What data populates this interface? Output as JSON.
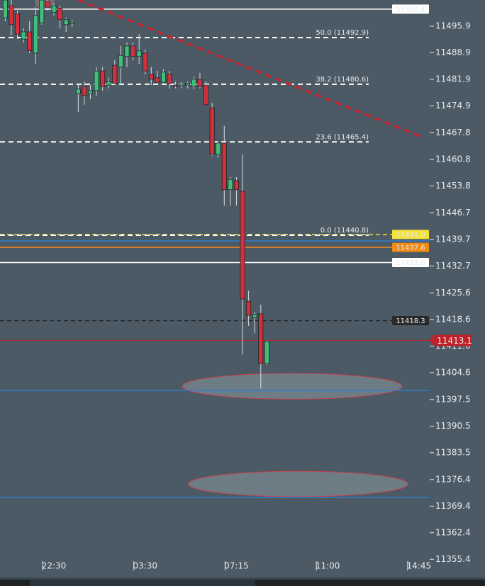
{
  "chart_data": {
    "type": "candlestick",
    "x": [
      -8,
      -7,
      -6,
      -5,
      -4,
      -3,
      -2,
      -1,
      0,
      1,
      2,
      3,
      4,
      5,
      6,
      7,
      8,
      9,
      10,
      11,
      12,
      13,
      14,
      15,
      16,
      17,
      18,
      19,
      20,
      21,
      22,
      23,
      24,
      25,
      26,
      27,
      28,
      29,
      30,
      31,
      32,
      33,
      34,
      35
    ],
    "open": [
      11498.1,
      11501.3,
      11499.1,
      11492.5,
      11494.4,
      11488.8,
      11496.8,
      11502.4,
      11499.5,
      11500.6,
      11496.3,
      11496.6,
      11478.2,
      11480.0,
      11478.0,
      11478.9,
      11484.1,
      11480.4,
      11485.6,
      11485.1,
      11487.9,
      11490.7,
      11487.9,
      11488.8,
      11483.2,
      11482.3,
      11481.1,
      11483.2,
      11480.4,
      11480.2,
      11480.4,
      11480.0,
      11481.9,
      11480.4,
      11474.4,
      11462.1,
      11465.1,
      11452.8,
      11455.2,
      11452.4,
      11423.4,
      11419.1,
      11420.1,
      11407.0
    ],
    "high": [
      11503.7,
      11502.8,
      11500.0,
      11495.3,
      11497.2,
      11500.9,
      11503.7,
      11503.7,
      11501.9,
      11501.3,
      11498.1,
      11497.6,
      11480.4,
      11481.3,
      11480.4,
      11485.1,
      11485.1,
      11482.3,
      11486.9,
      11490.7,
      11491.6,
      11491.6,
      11493.8,
      11489.7,
      11485.1,
      11484.1,
      11484.5,
      11484.1,
      11481.3,
      11481.1,
      11481.3,
      11482.6,
      11483.6,
      11481.3,
      11475.7,
      11465.5,
      11469.6,
      11456.1,
      11456.1,
      11462.1,
      11426.2,
      11420.6,
      11422.5,
      11413.1
    ],
    "low": [
      11497.2,
      11493.5,
      11492.5,
      11491.6,
      11488.8,
      11486.0,
      11496.3,
      11500.0,
      11498.7,
      11495.3,
      11494.4,
      11495.7,
      11473.3,
      11475.2,
      11476.7,
      11477.6,
      11478.9,
      11479.5,
      11480.4,
      11480.4,
      11485.1,
      11486.9,
      11486.0,
      11483.2,
      11480.4,
      11480.4,
      11480.4,
      11479.5,
      11479.5,
      11479.5,
      11479.5,
      11479.3,
      11479.5,
      11475.2,
      11461.7,
      11461.3,
      11448.6,
      11448.6,
      11448.6,
      11409.4,
      11416.9,
      11415.0,
      11400.4,
      11406.6
    ],
    "close": [
      11502.8,
      11496.3,
      11493.8,
      11494.4,
      11489.4,
      11498.7,
      11502.8,
      11500.9,
      11501.3,
      11497.6,
      11497.6,
      11497.0,
      11479.3,
      11477.6,
      11478.9,
      11484.1,
      11480.0,
      11481.3,
      11480.8,
      11488.2,
      11490.7,
      11487.9,
      11489.4,
      11484.1,
      11481.9,
      11481.1,
      11483.8,
      11480.8,
      11480.2,
      11480.6,
      11480.8,
      11481.9,
      11480.0,
      11475.2,
      11462.1,
      11465.1,
      11452.8,
      11455.5,
      11452.8,
      11424.0,
      11419.7,
      11419.9,
      11407.0,
      11412.8
    ],
    "up_color": "#3fbf78",
    "down_color": "#d3303b",
    "wick_color": "#1c2226",
    "xlim": [
      -8.86,
      61.65
    ],
    "xticks": [
      {
        "value": 0,
        "label": "22:30"
      },
      {
        "value": 15,
        "label": "03:30"
      },
      {
        "value": 30,
        "label": "07:15"
      },
      {
        "value": 45,
        "label": "11:00"
      },
      {
        "value": 60,
        "label": "14:45"
      }
    ],
    "ylim": [
      11350.6,
      11502.8
    ],
    "yticks": [
      11495.9,
      11488.9,
      11481.9,
      11474.9,
      11467.8,
      11460.8,
      11453.8,
      11446.7,
      11439.7,
      11432.7,
      11425.6,
      11418.6,
      11411.6,
      11404.6,
      11397.5,
      11390.5,
      11383.5,
      11376.4,
      11369.4,
      11362.4,
      11355.4
    ],
    "fib_levels": [
      {
        "value": 11492.9,
        "label": "50.0 (11492.9)"
      },
      {
        "value": 11480.6,
        "label": "38.2 (11480.6)"
      },
      {
        "value": 11465.4,
        "label": "23.6 (11465.4)"
      },
      {
        "value": 11440.8,
        "label": "0.0 (11440.8)"
      }
    ],
    "levels": [
      {
        "value": 11500.4,
        "color": "#ffffff",
        "dash": false,
        "tag": "#ffffff",
        "tag_text": "#222222"
      },
      {
        "value": 11441.0,
        "label": "11441.0",
        "color": "#f5e23a",
        "dash": true,
        "tag": "#f5e23a",
        "tag_text": "#222222"
      },
      {
        "value": 11439.3,
        "color": "#2f7fd0",
        "dash": false
      },
      {
        "value": 11437.6,
        "color": "#f08a16",
        "dash": false,
        "tag": "#f08a16",
        "tag_text": "#ffffff"
      },
      {
        "value": 11433.6,
        "color": "#ffffff",
        "dash": false,
        "tag": "#ffffff",
        "tag_text": "#222222"
      },
      {
        "value": 11418.3,
        "color": "#222222",
        "dash": true,
        "tag": "#2a2a2a",
        "tag_text": "#ffffff"
      },
      {
        "value": 11399.9,
        "color": "#2f7fd0",
        "dash": false
      },
      {
        "value": 11371.7,
        "color": "#2f7fd0",
        "dash": false
      }
    ],
    "last_price": {
      "value": 11413.1,
      "color": "#c0202a"
    },
    "trendline": {
      "points": [
        [
          4,
          11502.8
        ],
        [
          60.7,
          11466.6
        ]
      ],
      "color": "#d0202a"
    },
    "zones": [
      {
        "x": [
          21.1,
          57.2
        ],
        "y": [
          11397.6,
          11404.4
        ]
      },
      {
        "x": [
          22.1,
          58.2
        ],
        "y": [
          11371.9,
          11378.6
        ]
      }
    ]
  }
}
